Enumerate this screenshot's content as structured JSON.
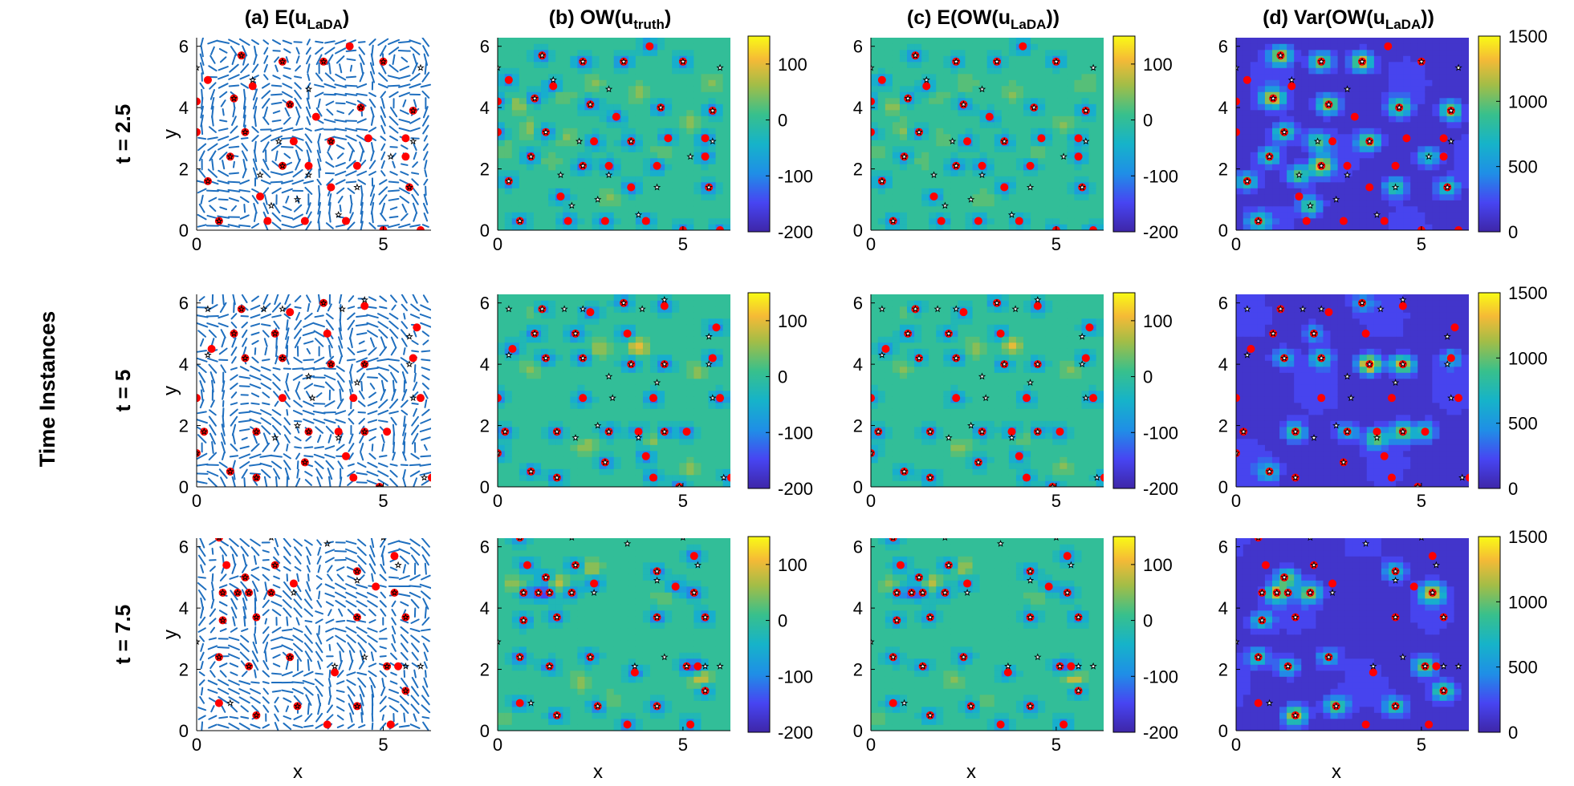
{
  "figure": {
    "row_group_label": "Time Instances",
    "column_titles": [
      {
        "prefix": "(a)  E(u",
        "sub": "LaDA",
        "suffix": ")"
      },
      {
        "prefix": "(b)  OW(u",
        "sub": "truth",
        "suffix": ")"
      },
      {
        "prefix": "(c)  E(OW(u",
        "sub": "LaDA",
        "suffix": "))"
      },
      {
        "prefix": "(d)  Var(OW(u",
        "sub": "LaDA",
        "suffix": "))"
      }
    ],
    "row_labels": [
      "t = 2.5",
      "t = 5",
      "t = 7.5"
    ],
    "xlabel": "x",
    "ylabel": "y"
  },
  "chart_data": {
    "type": "heatmap",
    "grid": "off",
    "xlim": [
      0,
      6.28
    ],
    "ylim": [
      0,
      6.28
    ],
    "x_ticks": [
      0,
      5
    ],
    "y_ticks": [
      0,
      2,
      4,
      6
    ],
    "panel_types": [
      "quiver",
      "contour",
      "contour",
      "contour"
    ],
    "colorbars": {
      "ow": {
        "ticks": [
          100,
          0,
          -100,
          -200
        ],
        "range": [
          -200,
          150
        ],
        "colormap": "parula"
      },
      "var": {
        "ticks": [
          1500,
          1000,
          500,
          0
        ],
        "range": [
          0,
          1500
        ],
        "colormap": "parula"
      }
    },
    "marker_colors": {
      "observed": "#ff0000",
      "estimated": "#000000",
      "quiver": "#1f6fbf"
    },
    "rows": [
      {
        "t": 2.5,
        "observed_points": [
          [
            1.2,
            5.7
          ],
          [
            2.3,
            5.5
          ],
          [
            3.4,
            5.5
          ],
          [
            4.1,
            6.0
          ],
          [
            5.0,
            5.5
          ],
          [
            0.3,
            4.9
          ],
          [
            1.5,
            4.7
          ],
          [
            0.0,
            4.2
          ],
          [
            1.0,
            4.3
          ],
          [
            2.5,
            4.1
          ],
          [
            3.2,
            3.7
          ],
          [
            4.4,
            4.0
          ],
          [
            5.8,
            3.9
          ],
          [
            0.0,
            3.2
          ],
          [
            1.3,
            3.2
          ],
          [
            2.6,
            2.9
          ],
          [
            3.6,
            2.9
          ],
          [
            4.6,
            3.0
          ],
          [
            5.6,
            3.0
          ],
          [
            0.9,
            2.4
          ],
          [
            2.3,
            2.1
          ],
          [
            3.0,
            2.1
          ],
          [
            4.3,
            2.1
          ],
          [
            5.6,
            2.4
          ],
          [
            0.3,
            1.6
          ],
          [
            1.7,
            1.1
          ],
          [
            3.6,
            1.4
          ],
          [
            5.7,
            1.4
          ],
          [
            0.6,
            0.3
          ],
          [
            1.9,
            0.3
          ],
          [
            2.9,
            0.3
          ],
          [
            4.0,
            0.3
          ],
          [
            5.0,
            0.0
          ],
          [
            6.0,
            0.0
          ]
        ],
        "estimated_points": [
          [
            1.2,
            5.7
          ],
          [
            2.3,
            5.5
          ],
          [
            3.4,
            5.5
          ],
          [
            5.0,
            5.5
          ],
          [
            6.0,
            5.3
          ],
          [
            0.0,
            5.3
          ],
          [
            1.5,
            4.9
          ],
          [
            1.0,
            4.3
          ],
          [
            3.0,
            4.6
          ],
          [
            2.5,
            4.1
          ],
          [
            4.4,
            4.0
          ],
          [
            5.8,
            3.9
          ],
          [
            1.3,
            3.2
          ],
          [
            2.2,
            2.9
          ],
          [
            3.6,
            2.9
          ],
          [
            5.8,
            2.9
          ],
          [
            0.9,
            2.4
          ],
          [
            2.3,
            2.1
          ],
          [
            5.2,
            2.4
          ],
          [
            1.7,
            1.8
          ],
          [
            3.0,
            1.8
          ],
          [
            4.3,
            1.4
          ],
          [
            0.3,
            1.6
          ],
          [
            2.7,
            1.0
          ],
          [
            5.7,
            1.4
          ],
          [
            0.6,
            0.3
          ],
          [
            3.8,
            0.5
          ],
          [
            2.0,
            0.8
          ]
        ],
        "ow_extremes": [
          [
            0.6,
            4.1,
            60
          ],
          [
            1.8,
            4.4,
            40
          ],
          [
            2.6,
            4.8,
            40
          ],
          [
            3.8,
            4.5,
            50
          ],
          [
            5.2,
            3.5,
            50
          ],
          [
            0.9,
            3.3,
            55
          ],
          [
            1.9,
            3.0,
            40
          ],
          [
            4.5,
            2.6,
            45
          ],
          [
            3.0,
            1.0,
            45
          ],
          [
            0.2,
            2.6,
            40
          ],
          [
            5.8,
            4.8,
            40
          ],
          [
            1.4,
            2.3,
            35
          ]
        ],
        "var_extremes": [
          [
            1.2,
            5.7,
            1100
          ],
          [
            2.3,
            5.5,
            1000
          ],
          [
            3.4,
            5.5,
            1200
          ],
          [
            1.0,
            4.3,
            1100
          ],
          [
            2.5,
            4.1,
            1100
          ],
          [
            4.4,
            4.0,
            900
          ],
          [
            5.8,
            3.9,
            1000
          ],
          [
            1.3,
            3.2,
            900
          ],
          [
            2.2,
            2.9,
            800
          ],
          [
            3.6,
            2.9,
            1000
          ],
          [
            5.2,
            2.4,
            700
          ],
          [
            0.9,
            2.4,
            800
          ],
          [
            2.3,
            2.1,
            1200
          ],
          [
            0.3,
            1.6,
            800
          ],
          [
            1.7,
            1.8,
            900
          ],
          [
            4.3,
            1.4,
            800
          ],
          [
            5.7,
            1.4,
            700
          ],
          [
            2.0,
            0.8,
            900
          ],
          [
            0.6,
            0.3,
            700
          ]
        ]
      },
      {
        "t": 5,
        "observed_points": [
          [
            1.2,
            5.8
          ],
          [
            3.4,
            6.0
          ],
          [
            4.5,
            5.9
          ],
          [
            5.9,
            5.2
          ],
          [
            2.5,
            5.7
          ],
          [
            0.4,
            4.5
          ],
          [
            1.0,
            5.0
          ],
          [
            2.1,
            5.0
          ],
          [
            3.5,
            5.0
          ],
          [
            1.3,
            4.2
          ],
          [
            2.3,
            4.2
          ],
          [
            3.6,
            4.0
          ],
          [
            4.5,
            4.0
          ],
          [
            5.8,
            4.2
          ],
          [
            0.0,
            2.9
          ],
          [
            2.3,
            2.9
          ],
          [
            4.2,
            2.9
          ],
          [
            6.0,
            2.9
          ],
          [
            0.2,
            1.8
          ],
          [
            1.6,
            1.8
          ],
          [
            3.0,
            1.8
          ],
          [
            4.5,
            1.8
          ],
          [
            5.1,
            1.8
          ],
          [
            0.0,
            1.1
          ],
          [
            0.9,
            0.5
          ],
          [
            1.6,
            0.3
          ],
          [
            2.9,
            0.8
          ],
          [
            4.0,
            1.0
          ],
          [
            4.9,
            0.0
          ],
          [
            6.3,
            0.3
          ],
          [
            4.2,
            0.3
          ],
          [
            3.8,
            1.8
          ]
        ],
        "estimated_points": [
          [
            0.3,
            5.8
          ],
          [
            1.2,
            5.8
          ],
          [
            1.8,
            5.8
          ],
          [
            3.4,
            6.0
          ],
          [
            4.5,
            6.1
          ],
          [
            3.9,
            5.8
          ],
          [
            2.3,
            5.8
          ],
          [
            5.7,
            4.9
          ],
          [
            1.0,
            5.0
          ],
          [
            2.1,
            5.0
          ],
          [
            0.3,
            4.3
          ],
          [
            1.3,
            4.2
          ],
          [
            2.3,
            4.2
          ],
          [
            3.6,
            4.0
          ],
          [
            4.5,
            4.0
          ],
          [
            5.7,
            4.0
          ],
          [
            3.1,
            2.9
          ],
          [
            4.3,
            3.4
          ],
          [
            5.8,
            2.9
          ],
          [
            3.0,
            3.6
          ],
          [
            2.7,
            2.0
          ],
          [
            1.6,
            1.8
          ],
          [
            3.0,
            1.8
          ],
          [
            3.8,
            1.6
          ],
          [
            4.5,
            1.8
          ],
          [
            2.1,
            1.6
          ],
          [
            0.2,
            1.8
          ],
          [
            0.0,
            1.1
          ],
          [
            0.9,
            0.5
          ],
          [
            1.6,
            0.3
          ],
          [
            2.9,
            0.8
          ],
          [
            6.1,
            0.3
          ],
          [
            4.9,
            0.0
          ]
        ],
        "ow_extremes": [
          [
            3.8,
            4.6,
            110
          ],
          [
            2.8,
            4.5,
            70
          ],
          [
            5.4,
            3.8,
            60
          ],
          [
            0.9,
            3.9,
            50
          ],
          [
            4.2,
            1.6,
            60
          ],
          [
            2.4,
            1.3,
            60
          ],
          [
            1.0,
            5.7,
            50
          ],
          [
            5.2,
            0.6,
            50
          ]
        ],
        "var_extremes": [
          [
            3.6,
            4.0,
            1500
          ],
          [
            4.5,
            4.0,
            1200
          ],
          [
            2.3,
            4.2,
            700
          ],
          [
            1.3,
            4.2,
            600
          ],
          [
            4.5,
            1.8,
            1000
          ],
          [
            3.8,
            1.6,
            900
          ],
          [
            5.1,
            1.8,
            700
          ],
          [
            1.6,
            1.8,
            800
          ],
          [
            3.0,
            1.8,
            600
          ],
          [
            2.1,
            5.0,
            500
          ],
          [
            3.4,
            6.0,
            500
          ],
          [
            5.8,
            4.2,
            500
          ],
          [
            0.9,
            0.5,
            600
          ]
        ]
      },
      {
        "t": 7.5,
        "observed_points": [
          [
            0.6,
            6.3
          ],
          [
            0.8,
            5.4
          ],
          [
            1.3,
            5.0
          ],
          [
            2.1,
            5.4
          ],
          [
            1.1,
            4.5
          ],
          [
            2.0,
            4.5
          ],
          [
            2.6,
            4.8
          ],
          [
            1.6,
            3.7
          ],
          [
            0.7,
            3.6
          ],
          [
            1.4,
            4.5
          ],
          [
            0.7,
            4.5
          ],
          [
            4.3,
            5.2
          ],
          [
            5.3,
            5.7
          ],
          [
            4.8,
            4.7
          ],
          [
            5.3,
            4.5
          ],
          [
            4.3,
            3.7
          ],
          [
            5.6,
            3.7
          ],
          [
            0.6,
            2.4
          ],
          [
            1.4,
            2.1
          ],
          [
            2.5,
            2.4
          ],
          [
            3.7,
            1.9
          ],
          [
            5.1,
            2.1
          ],
          [
            5.4,
            2.1
          ],
          [
            5.6,
            1.3
          ],
          [
            0.6,
            0.9
          ],
          [
            1.6,
            0.5
          ],
          [
            2.7,
            0.8
          ],
          [
            4.3,
            0.8
          ],
          [
            5.2,
            0.2
          ],
          [
            3.5,
            0.2
          ]
        ],
        "estimated_points": [
          [
            0.6,
            6.3
          ],
          [
            2.0,
            6.3
          ],
          [
            3.5,
            6.1
          ],
          [
            5.0,
            6.3
          ],
          [
            1.3,
            5.0
          ],
          [
            2.1,
            5.4
          ],
          [
            1.1,
            4.5
          ],
          [
            2.0,
            4.5
          ],
          [
            2.6,
            4.5
          ],
          [
            1.6,
            3.7
          ],
          [
            0.7,
            3.6
          ],
          [
            1.4,
            4.5
          ],
          [
            0.7,
            4.5
          ],
          [
            4.3,
            5.2
          ],
          [
            5.4,
            5.4
          ],
          [
            4.3,
            4.9
          ],
          [
            5.3,
            4.5
          ],
          [
            4.3,
            3.7
          ],
          [
            5.6,
            3.7
          ],
          [
            0.0,
            2.9
          ],
          [
            0.6,
            2.4
          ],
          [
            1.4,
            2.1
          ],
          [
            2.5,
            2.4
          ],
          [
            3.7,
            2.1
          ],
          [
            4.5,
            2.4
          ],
          [
            5.1,
            2.1
          ],
          [
            5.6,
            2.1
          ],
          [
            6.0,
            2.1
          ],
          [
            5.6,
            1.3
          ],
          [
            0.9,
            0.9
          ],
          [
            1.6,
            0.5
          ],
          [
            2.7,
            0.8
          ],
          [
            4.3,
            0.8
          ]
        ],
        "ow_extremes": [
          [
            1.6,
            4.8,
            110
          ],
          [
            0.5,
            4.7,
            80
          ],
          [
            2.5,
            5.3,
            70
          ],
          [
            5.5,
            1.7,
            110
          ],
          [
            2.2,
            1.6,
            50
          ],
          [
            3.1,
            1.0,
            40
          ],
          [
            0.2,
            0.4,
            40
          ],
          [
            4.5,
            4.4,
            40
          ]
        ],
        "var_extremes": [
          [
            1.1,
            4.5,
            1100
          ],
          [
            2.0,
            4.5,
            1000
          ],
          [
            1.4,
            5.0,
            900
          ],
          [
            0.7,
            3.6,
            700
          ],
          [
            5.3,
            4.5,
            1200
          ],
          [
            4.3,
            5.2,
            700
          ],
          [
            5.1,
            2.1,
            1000
          ],
          [
            5.6,
            1.3,
            1000
          ],
          [
            1.6,
            0.5,
            1200
          ],
          [
            2.7,
            0.8,
            900
          ],
          [
            4.3,
            0.8,
            800
          ],
          [
            0.6,
            2.4,
            700
          ],
          [
            1.4,
            2.1,
            700
          ],
          [
            2.5,
            2.4,
            600
          ]
        ]
      }
    ]
  }
}
